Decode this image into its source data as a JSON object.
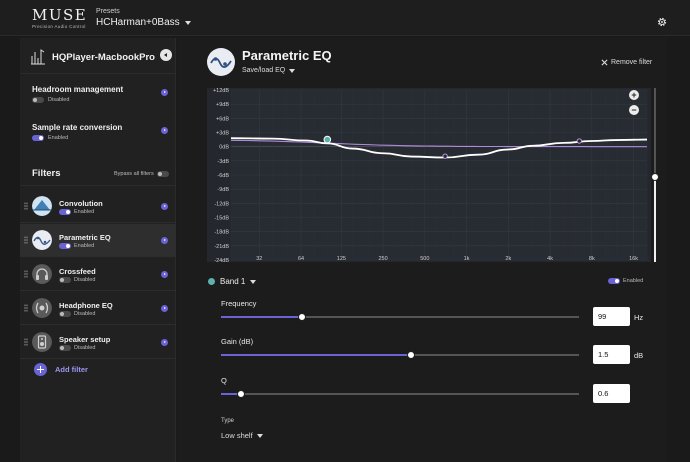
{
  "app": {
    "logo": "MUSE",
    "logo_tagline": "Precision Audio Control",
    "presets_label": "Presets",
    "preset_name": "HCHarman+0Bass"
  },
  "sidebar": {
    "device_name": "HQPlayer-MacbookPro",
    "headroom": {
      "title": "Headroom management",
      "status": "Disabled"
    },
    "src": {
      "title": "Sample rate conversion",
      "status": "Enabled"
    },
    "filters_title": "Filters",
    "bypass_label": "Bypass all filters",
    "filters": [
      {
        "name": "Convolution",
        "status": "Enabled",
        "icon": "convolution-icon"
      },
      {
        "name": "Parametric EQ",
        "status": "Enabled",
        "icon": "eq-curve-icon"
      },
      {
        "name": "Crossfeed",
        "status": "Disabled",
        "icon": "headphones-icon"
      },
      {
        "name": "Headphone EQ",
        "status": "Disabled",
        "icon": "headphone-eq-icon"
      },
      {
        "name": "Speaker setup",
        "status": "Disabled",
        "icon": "speaker-icon"
      }
    ],
    "add_filter_label": "Add filter"
  },
  "main": {
    "title": "Parametric EQ",
    "save_load_label": "Save/load EQ",
    "remove_filter_label": "Remove filter",
    "band_label": "Band 1",
    "band_status": "Enabled",
    "params": {
      "frequency": {
        "label": "Frequency",
        "value": "99",
        "unit": "Hz",
        "fraction": 0.225
      },
      "gain": {
        "label": "Gain (dB)",
        "value": "1.5",
        "unit": "dB",
        "fraction": 0.53
      },
      "q": {
        "label": "Q",
        "value": "0.6",
        "fraction": 0.055
      }
    },
    "type_label": "Type",
    "type_value": "Low shelf",
    "zoom_in": "+",
    "zoom_out": "−"
  },
  "chart_data": {
    "type": "line",
    "y_ticks": [
      "+12dB",
      "+9dB",
      "+6dB",
      "+3dB",
      "0dB",
      "-3dB",
      "-6dB",
      "-9dB",
      "-12dB",
      "-15dB",
      "-18dB",
      "-21dB",
      "-24dB"
    ],
    "x_ticks": [
      "32",
      "64",
      "125",
      "250",
      "500",
      "1k",
      "2k",
      "4k",
      "8k",
      "16k"
    ],
    "xlim": [
      20,
      20000
    ],
    "ylim": [
      -24,
      12
    ],
    "grid": true,
    "colors": {
      "total_curve": "#ffffff",
      "band_curve": "#b08ad9",
      "band1_marker": "#5fb0b0",
      "accent": "#6a63d6"
    },
    "bands": [
      {
        "freq": 99,
        "gain": 1.5,
        "q": 0.6,
        "type": "Low shelf"
      },
      {
        "freq": 700,
        "gain": -2.0
      },
      {
        "freq": 6500,
        "gain": 1.2
      }
    ],
    "curve": [
      [
        20,
        1.8
      ],
      [
        40,
        1.7
      ],
      [
        70,
        1.3
      ],
      [
        99,
        0.7
      ],
      [
        150,
        -0.4
      ],
      [
        250,
        -1.4
      ],
      [
        400,
        -2.1
      ],
      [
        700,
        -2.3
      ],
      [
        1200,
        -1.7
      ],
      [
        2000,
        -0.6
      ],
      [
        3000,
        0.2
      ],
      [
        5000,
        0.8
      ],
      [
        8000,
        1.2
      ],
      [
        12000,
        1.4
      ],
      [
        20000,
        1.5
      ]
    ]
  }
}
